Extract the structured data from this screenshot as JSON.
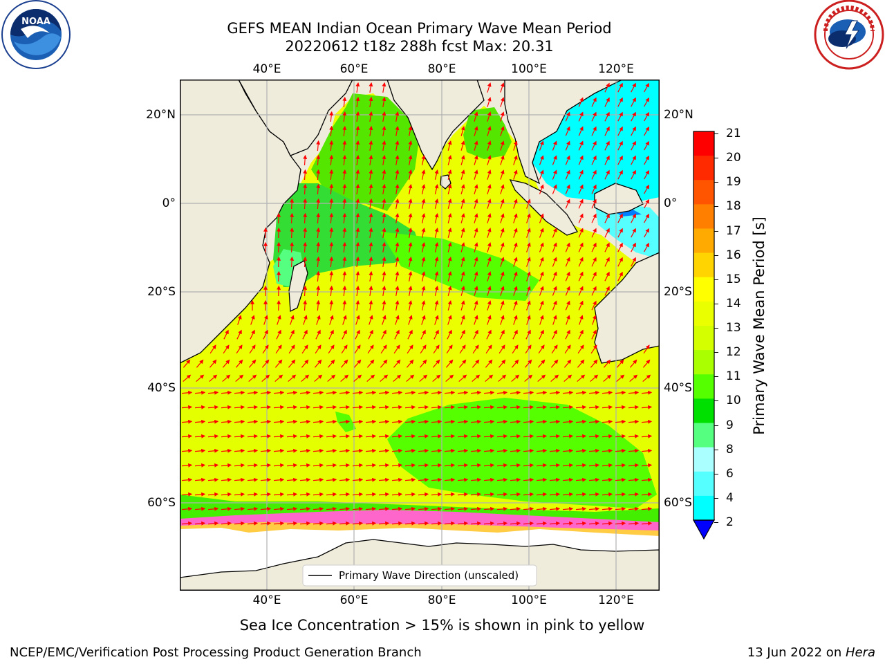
{
  "header": {
    "title_line1": "GEFS MEAN Indian Ocean Primary Wave Mean Period",
    "title_line2": "20220612 t18z 288h fcst   Max: 20.31"
  },
  "logos": {
    "noaa": {
      "text": "NOAA",
      "ring_text": "NATIONAL OCEANIC AND ATMOSPHERIC ADMINISTRATION · U.S. DEPARTMENT OF COMMERCE"
    },
    "nws": {
      "ring_text": "NATIONAL WEATHER SERVICE"
    }
  },
  "map": {
    "lon_ticks": [
      "40°E",
      "60°E",
      "80°E",
      "100°E",
      "120°E"
    ],
    "lat_ticks_left": [
      "20°N",
      "0°",
      "20°S",
      "40°S",
      "60°S"
    ],
    "lat_ticks_right": [
      "20°N",
      "0°",
      "20°S",
      "40°S",
      "60°S"
    ],
    "legend_label": "Primary Wave Direction (unscaled)",
    "colors": {
      "land": "#efecdc",
      "ice": "#ffffff",
      "arrow": "#ff0000",
      "grid": "#b0b0b0"
    }
  },
  "colorbar": {
    "label": "Primary Wave Mean Period [s]",
    "ticks": [
      "21",
      "20",
      "19",
      "18",
      "17",
      "16",
      "15",
      "14",
      "13",
      "12",
      "11",
      "10",
      "9",
      "8",
      "6",
      "4",
      "2"
    ],
    "colors": [
      "#ff0000",
      "#ff2a00",
      "#ff5500",
      "#ff8000",
      "#ffaa00",
      "#ffd400",
      "#ffff00",
      "#eaff00",
      "#d4ff00",
      "#aaff00",
      "#55ff00",
      "#00e000",
      "#55ff80",
      "#aaffff",
      "#55ffff",
      "#00ffff",
      "#0080ff",
      "#0000ff"
    ]
  },
  "footer": {
    "note": "Sea Ice Concentration > 15% is shown in pink to yellow",
    "left": "NCEP/EMC/Verification Post Processing Product Generation Branch",
    "right_date": "13 Jun 2022 on ",
    "right_host": "Hera"
  }
}
